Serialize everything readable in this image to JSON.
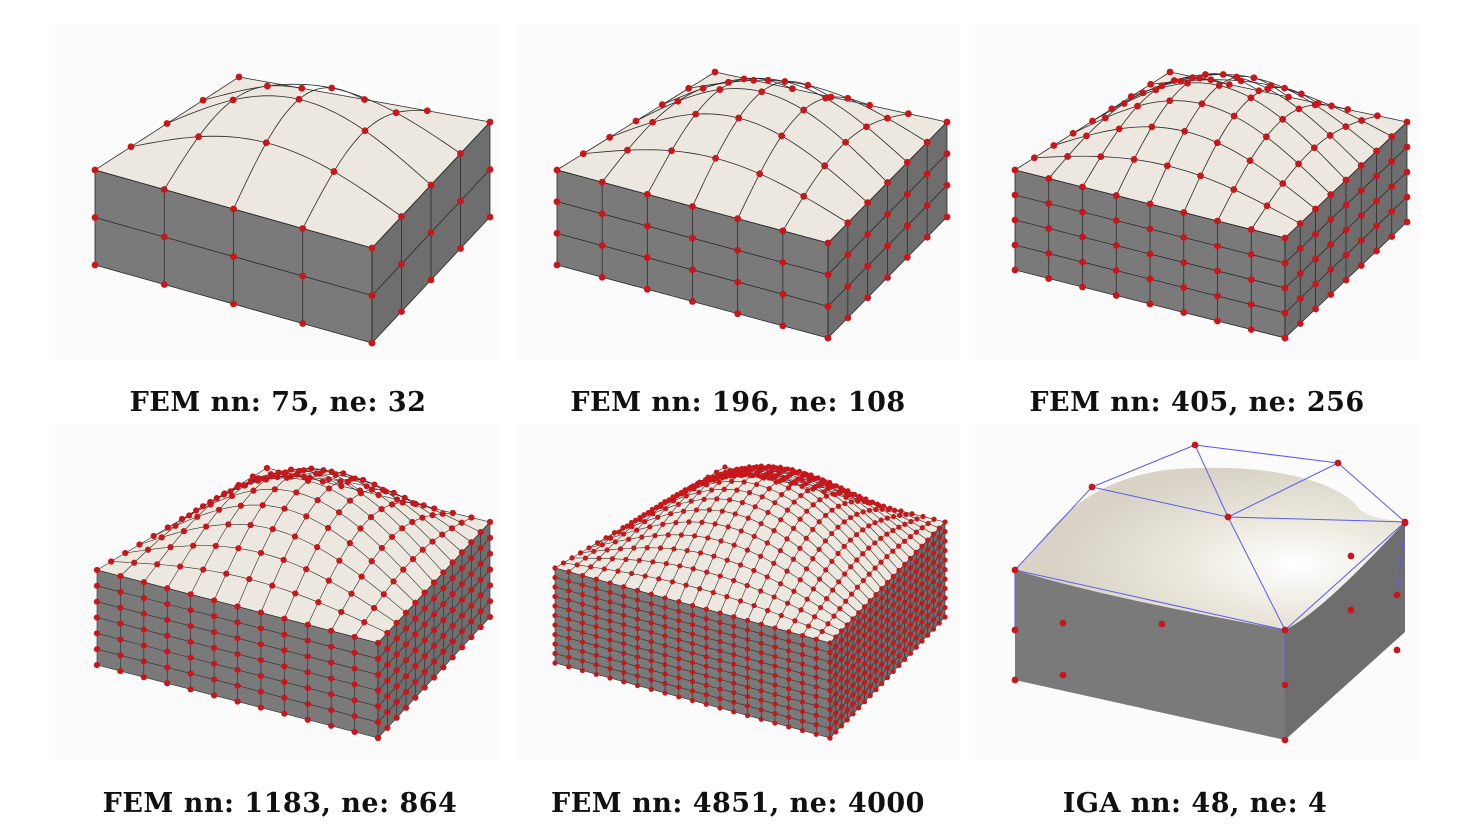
{
  "figure": {
    "panels": [
      {
        "caption": "FEM nn: 75, ne: 32"
      },
      {
        "caption": "FEM nn: 196, ne: 108"
      },
      {
        "caption": "FEM nn: 405, ne: 256"
      },
      {
        "caption": "FEM nn: 1183, ne: 864"
      },
      {
        "caption": "FEM nn: 4851, ne: 4000"
      },
      {
        "caption": "IGA nn: 48, ne: 4"
      }
    ]
  },
  "colors": {
    "top_surface": "#ece8df",
    "side_surface": "#7a7a7a",
    "node": "#c8161a",
    "edge": "#2a2a2a",
    "control_net": "#5b5bf0",
    "background": "#fbfbfb"
  }
}
